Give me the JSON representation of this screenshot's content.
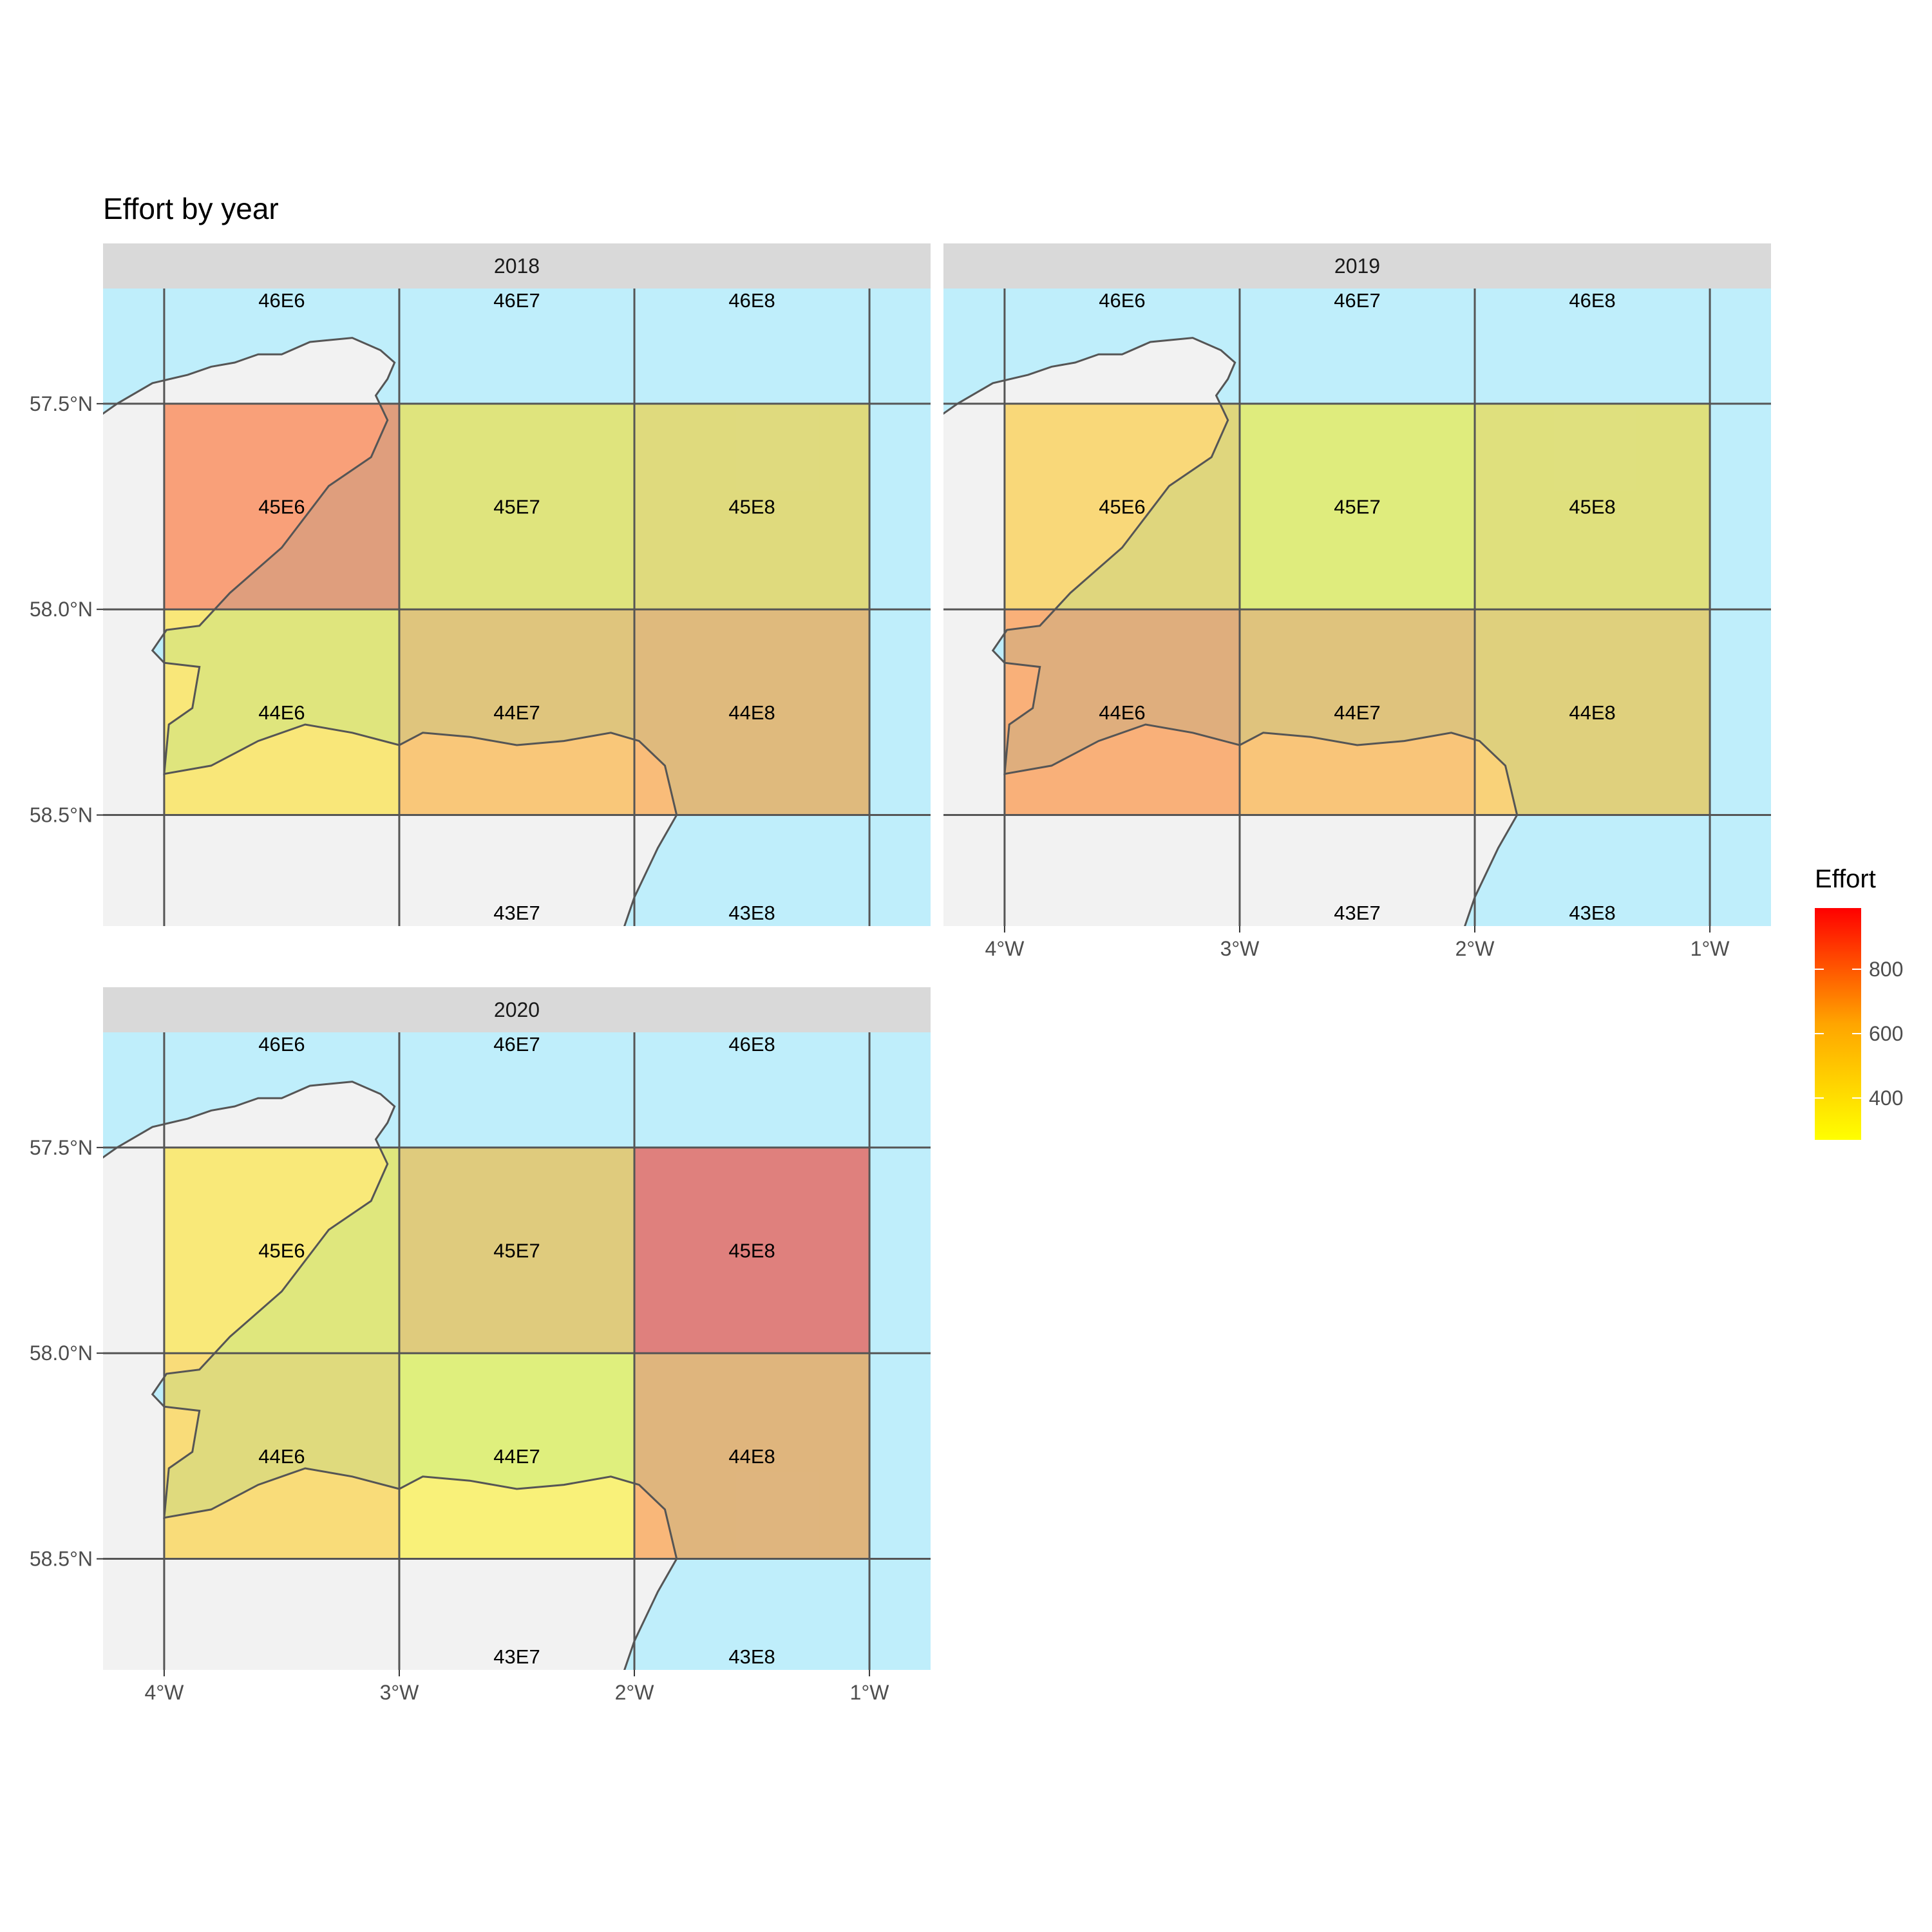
{
  "chart_data": {
    "type": "heatmap",
    "title": "Effort by year",
    "x_ticks": [
      "4°W",
      "3°W",
      "2°W",
      "1°W"
    ],
    "y_ticks": [
      "58.5°N",
      "58.0°N",
      "57.5°N"
    ],
    "lon_range": [
      -4.26,
      -0.74
    ],
    "lat_range": [
      57.23,
      58.78
    ],
    "grid_lons": [
      -4,
      -3,
      -2,
      -1
    ],
    "grid_lats": [
      57.5,
      58.0,
      58.5
    ],
    "legend": {
      "title": "Effort",
      "ticks": [
        400,
        600,
        800
      ],
      "range": [
        270,
        990
      ],
      "colors": [
        "#ffff00",
        "#ffa500",
        "#ff0000"
      ],
      "placement": "right"
    },
    "colors": {
      "sea": "#bfeefb",
      "land": "#f2f2f2",
      "strip": "#d9d9d9",
      "gridline": "#555555",
      "coast": "#555555"
    },
    "unfilled_rectangles": [
      {
        "label": "46E6",
        "lon": -3.5,
        "lat": 58.75
      },
      {
        "label": "46E7",
        "lon": -2.5,
        "lat": 58.75
      },
      {
        "label": "46E8",
        "lon": -1.5,
        "lat": 58.75
      },
      {
        "label": "43E7",
        "lon": -2.5,
        "lat": 57.25
      },
      {
        "label": "43E8",
        "lon": -1.5,
        "lat": 57.25
      }
    ],
    "panels": [
      {
        "year": "2018",
        "cells": [
          {
            "rect": "45E6",
            "lon": -3.5,
            "lat": 58.25,
            "effort": 820
          },
          {
            "rect": "45E7",
            "lon": -2.5,
            "lat": 58.25,
            "effort": 420
          },
          {
            "rect": "45E8",
            "lon": -1.5,
            "lat": 58.25,
            "effort": 500
          },
          {
            "rect": "44E6",
            "lon": -3.5,
            "lat": 57.75,
            "effort": 410
          },
          {
            "rect": "44E7",
            "lon": -2.5,
            "lat": 57.75,
            "effort": 650
          },
          {
            "rect": "44E8",
            "lon": -1.5,
            "lat": 57.75,
            "effort": 700
          }
        ]
      },
      {
        "year": "2019",
        "cells": [
          {
            "rect": "45E6",
            "lon": -3.5,
            "lat": 58.25,
            "effort": 530
          },
          {
            "rect": "45E7",
            "lon": -2.5,
            "lat": 58.25,
            "effort": 360
          },
          {
            "rect": "45E8",
            "lon": -1.5,
            "lat": 58.25,
            "effort": 450
          },
          {
            "rect": "44E6",
            "lon": -3.5,
            "lat": 57.75,
            "effort": 750
          },
          {
            "rect": "44E7",
            "lon": -2.5,
            "lat": 57.75,
            "effort": 660
          },
          {
            "rect": "44E8",
            "lon": -1.5,
            "lat": 57.75,
            "effort": 580
          }
        ]
      },
      {
        "year": "2020",
        "cells": [
          {
            "rect": "45E6",
            "lon": -3.5,
            "lat": 58.25,
            "effort": 400
          },
          {
            "rect": "45E7",
            "lon": -2.5,
            "lat": 58.25,
            "effort": 620
          },
          {
            "rect": "45E8",
            "lon": -1.5,
            "lat": 58.25,
            "effort": 950
          },
          {
            "rect": "44E6",
            "lon": -3.5,
            "lat": 57.75,
            "effort": 500
          },
          {
            "rect": "44E7",
            "lon": -2.5,
            "lat": 57.75,
            "effort": 330
          },
          {
            "rect": "44E8",
            "lon": -1.5,
            "lat": 57.75,
            "effort": 720
          }
        ]
      }
    ]
  }
}
